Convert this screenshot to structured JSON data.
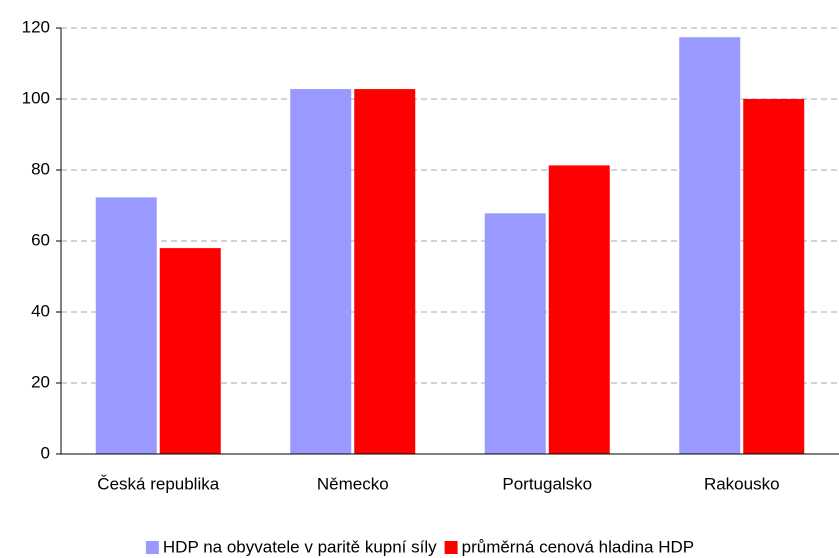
{
  "chart_data": {
    "type": "bar",
    "categories": [
      "Česká republika",
      "Německo",
      "Portugalsko",
      "Rakousko"
    ],
    "series": [
      {
        "name": "HDP na obyvatele v paritě kupní síly",
        "color": "#9999ff",
        "values": [
          72.3,
          102.8,
          67.8,
          117.4
        ]
      },
      {
        "name": "průměrná cenová hladina HDP",
        "color": "#ff0000",
        "values": [
          58,
          102.8,
          81.3,
          100
        ]
      }
    ],
    "ylim": [
      0,
      120
    ],
    "yticks": [
      0,
      20,
      40,
      60,
      80,
      100,
      120
    ],
    "grid": true,
    "legend": "bottom"
  }
}
